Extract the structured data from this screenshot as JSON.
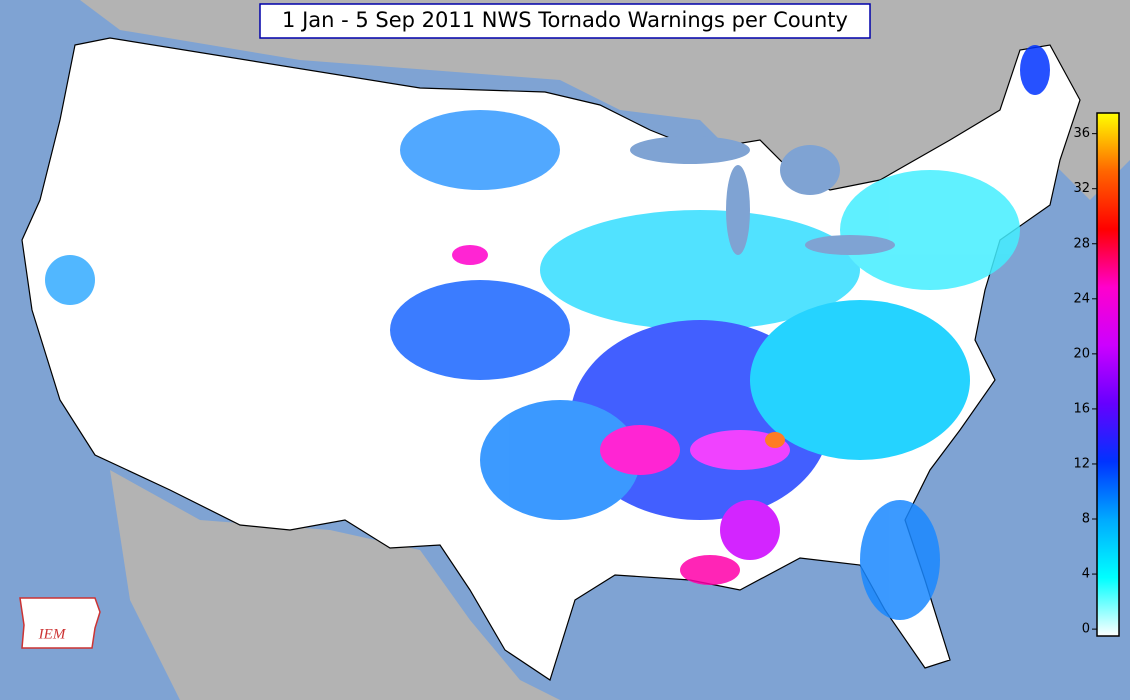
{
  "title": "1 Jan - 5 Sep 2011 NWS Tornado Warnings per County",
  "logo": "IEM",
  "colorbar": {
    "clim": [
      -0.5,
      37.5
    ],
    "ticks": [
      0,
      4,
      8,
      12,
      16,
      20,
      24,
      28,
      32,
      36
    ],
    "colors": [
      "#ffffff",
      "#00ffff",
      "#00aaff",
      "#0033ff",
      "#6600ff",
      "#cc00ff",
      "#ff00cc",
      "#ff0000",
      "#ff6600",
      "#ffff00"
    ]
  }
}
